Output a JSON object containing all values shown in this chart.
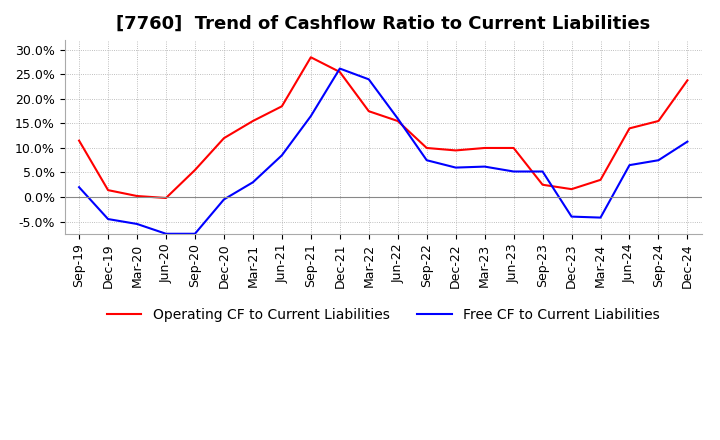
{
  "title": "[7760]  Trend of Cashflow Ratio to Current Liabilities",
  "legend": [
    "Operating CF to Current Liabilities",
    "Free CF to Current Liabilities"
  ],
  "line_colors": [
    "#ff0000",
    "#0000ff"
  ],
  "x_labels": [
    "Sep-19",
    "Dec-19",
    "Mar-20",
    "Jun-20",
    "Sep-20",
    "Dec-20",
    "Mar-21",
    "Jun-21",
    "Sep-21",
    "Dec-21",
    "Mar-22",
    "Jun-22",
    "Sep-22",
    "Dec-22",
    "Mar-23",
    "Jun-23",
    "Sep-23",
    "Dec-23",
    "Mar-24",
    "Jun-24",
    "Sep-24",
    "Dec-24"
  ],
  "operating_cf": [
    0.115,
    0.014,
    0.002,
    -0.002,
    0.055,
    0.12,
    0.155,
    0.185,
    0.285,
    0.255,
    0.175,
    0.155,
    0.1,
    0.095,
    0.1,
    0.1,
    0.025,
    0.016,
    0.035,
    0.14,
    0.155,
    0.238
  ],
  "free_cf": [
    0.02,
    -0.045,
    -0.055,
    -0.075,
    -0.075,
    -0.005,
    0.03,
    0.085,
    0.165,
    0.262,
    0.24,
    0.16,
    0.075,
    0.06,
    0.062,
    0.052,
    0.052,
    -0.04,
    -0.042,
    0.065,
    0.075,
    0.113
  ],
  "ylim": [
    -0.075,
    0.32
  ],
  "yticks": [
    -0.05,
    0.0,
    0.05,
    0.1,
    0.15,
    0.2,
    0.25,
    0.3
  ],
  "background_color": "#ffffff",
  "grid_color": "#aaaaaa",
  "title_fontsize": 13,
  "legend_fontsize": 10,
  "tick_fontsize": 9
}
